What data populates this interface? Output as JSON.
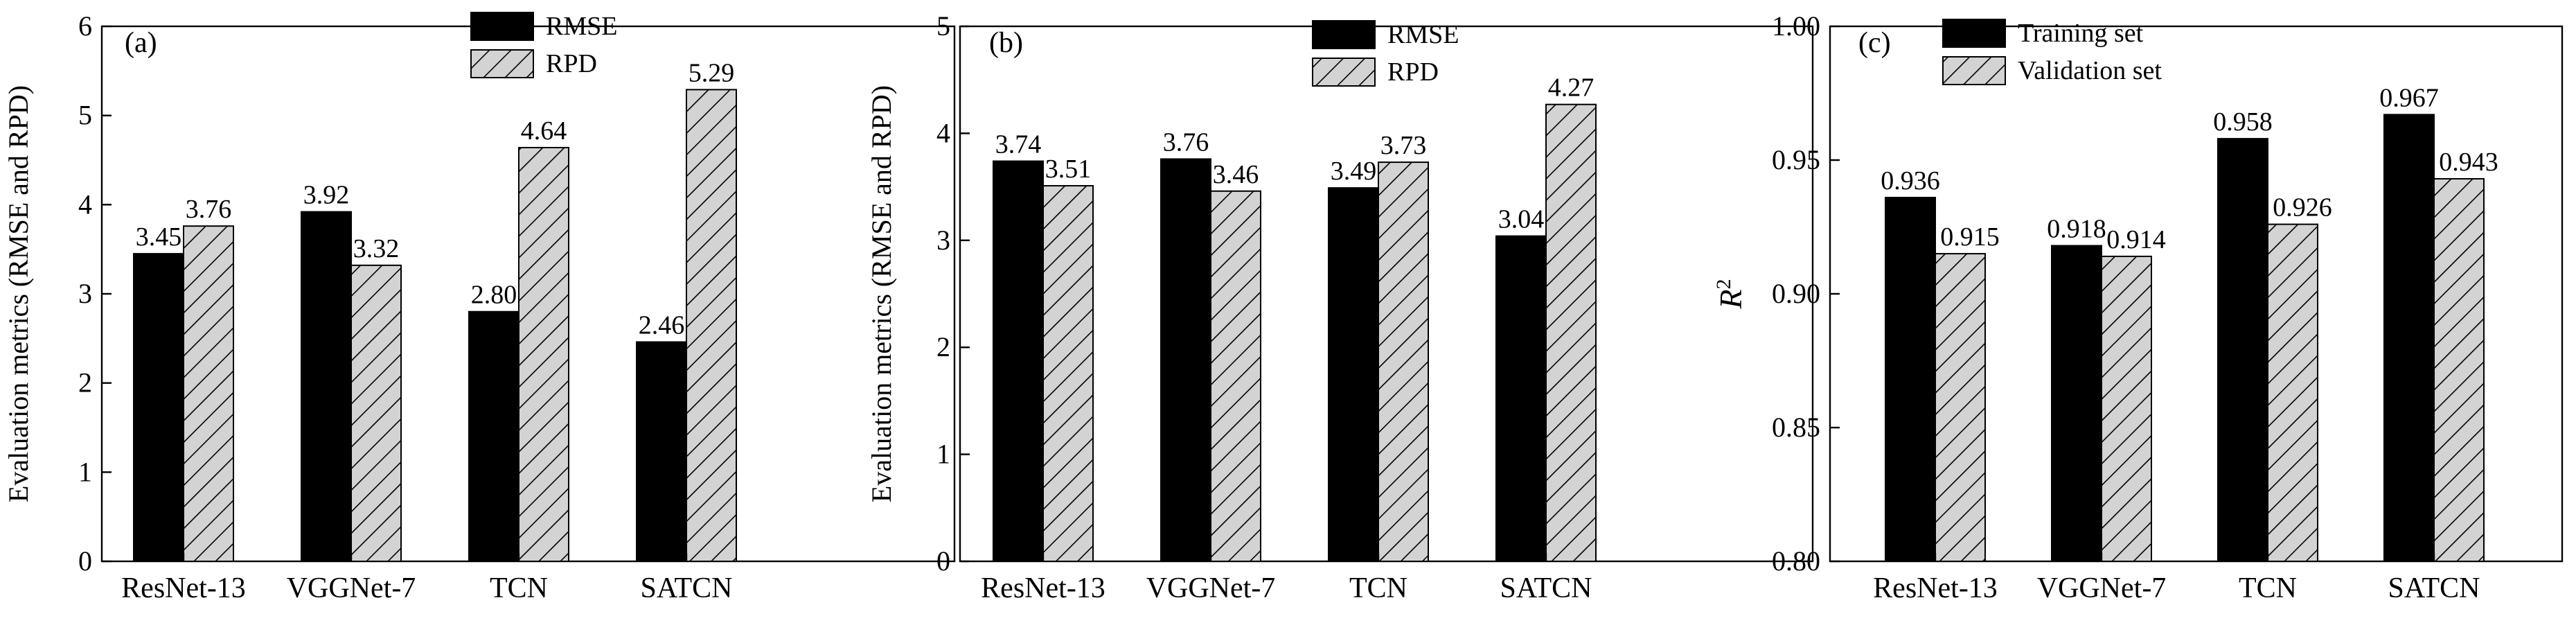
{
  "colors": {
    "solid_bar": "#000000",
    "hatched_bar_fill": "#d3d3d3",
    "hatch_stroke": "#000000",
    "axis": "#000000"
  },
  "chart_data": [
    {
      "type": "bar",
      "panel_label": "(a)",
      "title": "",
      "xlabel": "",
      "ylabel": "Evaluation metrics (RMSE and RPD)",
      "ylim": [
        0,
        6
      ],
      "yticks": [
        "0",
        "1",
        "2",
        "3",
        "4",
        "5",
        "6"
      ],
      "grid": false,
      "legend_position": "top-center",
      "categories": [
        "ResNet-13",
        "VGGNet-7",
        "TCN",
        "SATCN"
      ],
      "series": [
        {
          "name": "RMSE",
          "style": "solid",
          "values": [
            3.45,
            3.92,
            2.8,
            2.46
          ],
          "labels": [
            "3.45",
            "3.92",
            "2.80",
            "2.46"
          ]
        },
        {
          "name": "RPD",
          "style": "hatched",
          "values": [
            3.76,
            3.32,
            4.64,
            5.29
          ],
          "labels": [
            "3.76",
            "3.32",
            "4.64",
            "5.29"
          ]
        }
      ]
    },
    {
      "type": "bar",
      "panel_label": "(b)",
      "title": "",
      "xlabel": "",
      "ylabel": "Evaluation metrics (RMSE and RPD)",
      "ylim": [
        0,
        5
      ],
      "yticks": [
        "0",
        "1",
        "2",
        "3",
        "4",
        "5"
      ],
      "grid": false,
      "legend_position": "top-center",
      "categories": [
        "ResNet-13",
        "VGGNet-7",
        "TCN",
        "SATCN"
      ],
      "series": [
        {
          "name": "RMSE",
          "style": "solid",
          "values": [
            3.74,
            3.76,
            3.49,
            3.04
          ],
          "labels": [
            "3.74",
            "3.76",
            "3.49",
            "3.04"
          ]
        },
        {
          "name": "RPD",
          "style": "hatched",
          "values": [
            3.51,
            3.46,
            3.73,
            4.27
          ],
          "labels": [
            "3.51",
            "3.46",
            "3.73",
            "4.27"
          ]
        }
      ]
    },
    {
      "type": "bar",
      "panel_label": "(c)",
      "title": "",
      "xlabel": "",
      "ylabel": "R2",
      "ylim": [
        0.8,
        1.0
      ],
      "yticks": [
        "0.80",
        "0.85",
        "0.90",
        "0.95",
        "1.00"
      ],
      "grid": false,
      "legend_position": "top-center",
      "categories": [
        "ResNet-13",
        "VGGNet-7",
        "TCN",
        "SATCN"
      ],
      "series": [
        {
          "name": "Training set",
          "style": "solid",
          "values": [
            0.936,
            0.918,
            0.958,
            0.967
          ],
          "labels": [
            "0.936",
            "0.918",
            "0.958",
            "0.967"
          ]
        },
        {
          "name": "Validation set",
          "style": "hatched",
          "values": [
            0.915,
            0.914,
            0.926,
            0.943
          ],
          "labels": [
            "0.915",
            "0.914",
            "0.926",
            "0.943"
          ]
        }
      ]
    }
  ]
}
